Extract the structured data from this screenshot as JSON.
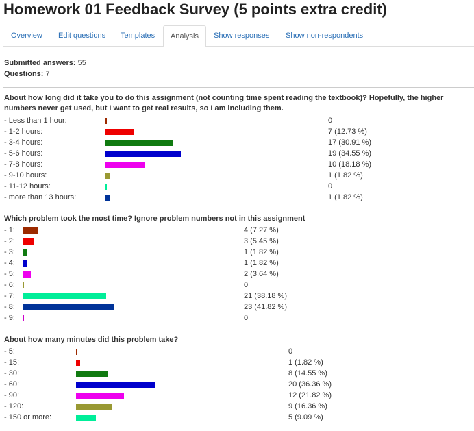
{
  "page": {
    "title": "Homework 01 Feedback Survey (5 points extra credit)"
  },
  "tabs": [
    {
      "label": "Overview",
      "active": false
    },
    {
      "label": "Edit questions",
      "active": false
    },
    {
      "label": "Templates",
      "active": false
    },
    {
      "label": "Analysis",
      "active": true
    },
    {
      "label": "Show responses",
      "active": false
    },
    {
      "label": "Show non-respondents",
      "active": false
    }
  ],
  "summary": {
    "submitted_label": "Submitted answers:",
    "submitted_value": "55",
    "questions_label": "Questions:",
    "questions_value": "7"
  },
  "questions": [
    {
      "title": "About how long did it take you to do this assignment (not counting time spent reading the textbook)? Hopefully, the higher numbers never get used, but I want to get real results, so I am including them.",
      "rows": [
        {
          "label": "- Less than 1 hour:",
          "count": 0,
          "count_text": "0",
          "color": "#9c2a00"
        },
        {
          "label": "- 1-2 hours:",
          "count": 7,
          "count_text": "7 (12.73 %)",
          "color": "#ee0000"
        },
        {
          "label": "- 3-4 hours:",
          "count": 17,
          "count_text": "17 (30.91 %)",
          "color": "#107a10"
        },
        {
          "label": "- 5-6 hours:",
          "count": 19,
          "count_text": "19 (34.55 %)",
          "color": "#0000cc"
        },
        {
          "label": "- 7-8 hours:",
          "count": 10,
          "count_text": "10 (18.18 %)",
          "color": "#ee00ee"
        },
        {
          "label": "- 9-10 hours:",
          "count": 1,
          "count_text": "1 (1.82 %)",
          "color": "#999933"
        },
        {
          "label": "- 11-12 hours:",
          "count": 0,
          "count_text": "0",
          "color": "#00ee99"
        },
        {
          "label": "- more than 13 hours:",
          "count": 1,
          "count_text": "1 (1.82 %)",
          "color": "#003399"
        }
      ]
    },
    {
      "title": "Which problem took the most time? Ignore problem numbers not in this assignment",
      "rows": [
        {
          "label": "- 1:",
          "count": 4,
          "count_text": "4 (7.27 %)",
          "color": "#9c2a00"
        },
        {
          "label": "- 2:",
          "count": 3,
          "count_text": "3 (5.45 %)",
          "color": "#ee0000"
        },
        {
          "label": "- 3:",
          "count": 1,
          "count_text": "1 (1.82 %)",
          "color": "#107a10"
        },
        {
          "label": "- 4:",
          "count": 1,
          "count_text": "1 (1.82 %)",
          "color": "#0000cc"
        },
        {
          "label": "- 5:",
          "count": 2,
          "count_text": "2 (3.64 %)",
          "color": "#ee00ee"
        },
        {
          "label": "- 6:",
          "count": 0,
          "count_text": "0",
          "color": "#999933"
        },
        {
          "label": "- 7:",
          "count": 21,
          "count_text": "21 (38.18 %)",
          "color": "#00ee99"
        },
        {
          "label": "- 8:",
          "count": 23,
          "count_text": "23 (41.82 %)",
          "color": "#003399"
        },
        {
          "label": "- 9:",
          "count": 0,
          "count_text": "0",
          "color": "#cc00cc"
        }
      ]
    },
    {
      "title": "About how many minutes did this problem take?",
      "rows": [
        {
          "label": "- 5:",
          "count": 0,
          "count_text": "0",
          "color": "#9c2a00"
        },
        {
          "label": "- 15:",
          "count": 1,
          "count_text": "1 (1.82 %)",
          "color": "#ee0000"
        },
        {
          "label": "- 30:",
          "count": 8,
          "count_text": "8 (14.55 %)",
          "color": "#107a10"
        },
        {
          "label": "- 60:",
          "count": 20,
          "count_text": "20 (36.36 %)",
          "color": "#0000cc"
        },
        {
          "label": "- 90:",
          "count": 12,
          "count_text": "12 (21.82 %)",
          "color": "#ee00ee"
        },
        {
          "label": "- 120:",
          "count": 9,
          "count_text": "9 (16.36 %)",
          "color": "#999933"
        },
        {
          "label": "- 150 or more:",
          "count": 5,
          "count_text": "5 (9.09 %)",
          "color": "#00ee99"
        }
      ]
    }
  ]
}
